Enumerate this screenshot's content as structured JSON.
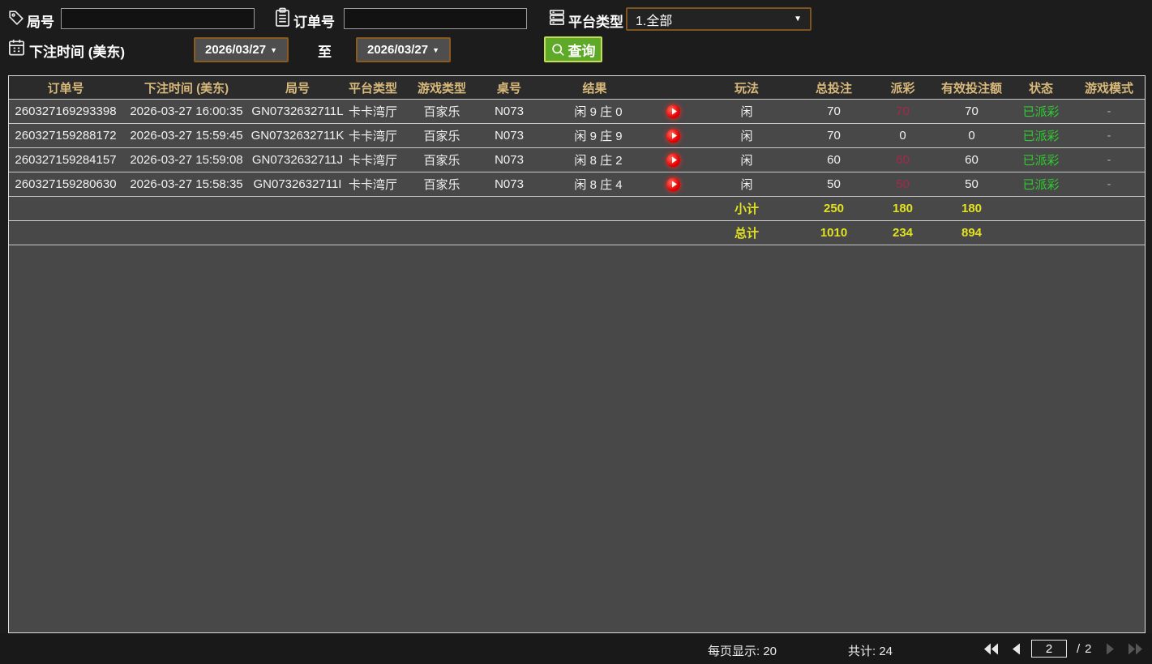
{
  "filters": {
    "round": {
      "label": "局号",
      "value": ""
    },
    "order": {
      "label": "订单号",
      "value": ""
    },
    "platform": {
      "label": "平台类型",
      "value": "1.全部"
    },
    "bet_time": {
      "label": "下注时间 (美东)",
      "from": "2026/03/27",
      "to_label": "至",
      "to": "2026/03/27"
    },
    "search_label": "查询"
  },
  "table": {
    "headers": [
      "订单号",
      "下注时间 (美东)",
      "局号",
      "平台类型",
      "游戏类型",
      "桌号",
      "结果",
      "玩法",
      "总投注",
      "派彩",
      "有效投注额",
      "状态",
      "游戏模式"
    ],
    "rows": [
      {
        "order_id": "260327169293398",
        "bet_time": "2026-03-27 16:00:35",
        "round_id": "GN0732632711L",
        "platform": "卡卡湾厅",
        "game_type": "百家乐",
        "table_no": "N073",
        "result": "闲 9 庄 0",
        "play_mode": "闲",
        "total_bet": "70",
        "payout": "70",
        "payout_highlight": true,
        "valid_bet": "70",
        "status": "已派彩",
        "game_mode": "-"
      },
      {
        "order_id": "260327159288172",
        "bet_time": "2026-03-27 15:59:45",
        "round_id": "GN0732632711K",
        "platform": "卡卡湾厅",
        "game_type": "百家乐",
        "table_no": "N073",
        "result": "闲 9 庄 9",
        "play_mode": "闲",
        "total_bet": "70",
        "payout": "0",
        "payout_highlight": false,
        "valid_bet": "0",
        "status": "已派彩",
        "game_mode": "-"
      },
      {
        "order_id": "260327159284157",
        "bet_time": "2026-03-27 15:59:08",
        "round_id": "GN0732632711J",
        "platform": "卡卡湾厅",
        "game_type": "百家乐",
        "table_no": "N073",
        "result": "闲 8 庄 2",
        "play_mode": "闲",
        "total_bet": "60",
        "payout": "60",
        "payout_highlight": true,
        "valid_bet": "60",
        "status": "已派彩",
        "game_mode": "-"
      },
      {
        "order_id": "260327159280630",
        "bet_time": "2026-03-27 15:58:35",
        "round_id": "GN0732632711I",
        "platform": "卡卡湾厅",
        "game_type": "百家乐",
        "table_no": "N073",
        "result": "闲 8 庄 4",
        "play_mode": "闲",
        "total_bet": "50",
        "payout": "50",
        "payout_highlight": true,
        "valid_bet": "50",
        "status": "已派彩",
        "game_mode": "-"
      }
    ],
    "subtotal": {
      "label": "小计",
      "total_bet": "250",
      "payout": "180",
      "valid_bet": "180"
    },
    "total": {
      "label": "总计",
      "total_bet": "1010",
      "payout": "234",
      "valid_bet": "894"
    }
  },
  "footer": {
    "page_size_label": "每页显示:",
    "page_size_value": "20",
    "total_label": "共计:",
    "total_value": "24",
    "current_page": "2",
    "page_separator": "/",
    "total_pages": "2"
  },
  "colors": {
    "accent_green": "#5fa928",
    "button_border": "#c9dc55",
    "orange_border": "#8a5a1e",
    "header_gold": "#d9ba7c",
    "payout_red": "#a5294a",
    "status_green": "#2ecc2e",
    "totals_yellow": "#e2e222",
    "play_red": "#e50000",
    "row_bg": "#484848",
    "header_bg": "#2b2b2b",
    "page_bg": "#1c1c1c"
  }
}
